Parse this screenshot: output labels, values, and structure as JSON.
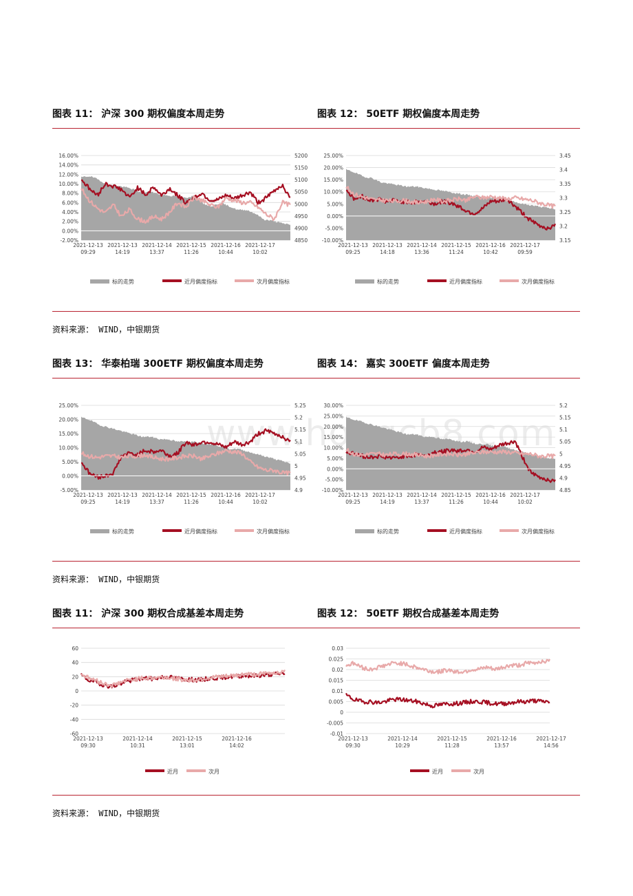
{
  "colors": {
    "gray": "#a6a6a6",
    "dark": "#a50f22",
    "light": "#e8a9a9",
    "rule": "#b8222f",
    "grid": "#d9d9d9"
  },
  "watermark": "www.hongcb8.com",
  "sources": [
    "资料来源： WIND，中银期货",
    "资料来源： WIND，中银期货",
    "资料来源： WIND，中银期货"
  ],
  "legend": {
    "underlying": "标的走势",
    "near": "近月偏度指标",
    "next": "次月偏度指标",
    "near_short": "近月",
    "next_short": "次月"
  },
  "charts": [
    {
      "title": "图表 11： 沪深 300 期权偏度本周走势",
      "chart_data": {
        "type": "area+line",
        "y_left_ticks": [
          "16.00%",
          "14.00%",
          "12.00%",
          "10.00%",
          "8.00%",
          "6.00%",
          "4.00%",
          "2.00%",
          "0.00%",
          "-2.00%"
        ],
        "y_right_ticks": [
          "5200",
          "5150",
          "5100",
          "5050",
          "5000",
          "4950",
          "4900",
          "4850"
        ],
        "ylim_left": [
          -2,
          16
        ],
        "ylim_right": [
          4850,
          5200
        ],
        "x_ticks": [
          [
            "2021-12-13",
            "09:29"
          ],
          [
            "2021-12-13",
            "14:19"
          ],
          [
            "2021-12-14",
            "13:37"
          ],
          [
            "2021-12-15",
            "11:26"
          ],
          [
            "2021-12-16",
            "10:44"
          ],
          [
            "2021-12-17",
            "10:02"
          ]
        ],
        "series": [
          {
            "name": "标的走势",
            "axis": "right",
            "values": [
              5110,
              5115,
              5100,
              5080,
              5075,
              5070,
              5060,
              5045,
              5050,
              5040,
              5035,
              5030,
              5025,
              5035,
              5000,
              4990,
              5005,
              4990,
              4975,
              4975,
              4960,
              4935,
              4930,
              4920,
              4915
            ]
          },
          {
            "name": "近月偏度指标",
            "axis": "left",
            "values": [
              11,
              9,
              7.5,
              10,
              9.5,
              8.8,
              7,
              9.2,
              7.6,
              9.3,
              7.5,
              9,
              7.5,
              6,
              7,
              8,
              6.5,
              6.5,
              7.5,
              6.8,
              7.5,
              8.2,
              6,
              7,
              8.5,
              9.8,
              6.8
            ]
          },
          {
            "name": "次月偏度指标",
            "axis": "left",
            "values": [
              9,
              6.5,
              4.8,
              3.8,
              5.5,
              3,
              4.5,
              2.5,
              2,
              3,
              2.5,
              4,
              6,
              5,
              7,
              6.5,
              5.5,
              5,
              7,
              6.5,
              6,
              6,
              5,
              3.5,
              2.5,
              6,
              5.5
            ]
          }
        ]
      }
    },
    {
      "title": "图表 12： 50ETF 期权偏度本周走势",
      "chart_data": {
        "type": "area+line",
        "y_left_ticks": [
          "25.00%",
          "20.00%",
          "15.00%",
          "10.00%",
          "5.00%",
          "0.00%",
          "-5.00%",
          "-10.00%"
        ],
        "y_right_ticks": [
          "3.45",
          "3.4",
          "3.35",
          "3.3",
          "3.25",
          "3.2",
          "3.15"
        ],
        "ylim_left": [
          -10,
          25
        ],
        "ylim_right": [
          3.15,
          3.45
        ],
        "x_ticks": [
          [
            "2021-12-13",
            "09:25"
          ],
          [
            "2021-12-13",
            "14:18"
          ],
          [
            "2021-12-14",
            "13:36"
          ],
          [
            "2021-12-15",
            "11:24"
          ],
          [
            "2021-12-16",
            "10:42"
          ],
          [
            "2021-12-17",
            "09:59"
          ]
        ],
        "series": [
          {
            "name": "标的走势",
            "axis": "right",
            "values": [
              3.4,
              3.39,
              3.375,
              3.37,
              3.355,
              3.35,
              3.345,
              3.34,
              3.34,
              3.335,
              3.33,
              3.325,
              3.32,
              3.315,
              3.31,
              3.305,
              3.3,
              3.3,
              3.3,
              3.29,
              3.28,
              3.275,
              3.27,
              3.265,
              3.26
            ]
          },
          {
            "name": "近月偏度指标",
            "axis": "left",
            "values": [
              11,
              7,
              8,
              6.5,
              7,
              6,
              6.5,
              6,
              5.5,
              6,
              6,
              5,
              6,
              5.5,
              4,
              2,
              1,
              3,
              6,
              6,
              7,
              4,
              1,
              -2,
              -4,
              -5,
              -4
            ]
          },
          {
            "name": "次月偏度指标",
            "axis": "left",
            "values": [
              12,
              9,
              8,
              7,
              6.5,
              6.5,
              6,
              6.5,
              6,
              5.5,
              6,
              7,
              6,
              6.5,
              7,
              6.5,
              8,
              7.5,
              8,
              7.5,
              7,
              7.5,
              7,
              6.5,
              5.5,
              4.5,
              4
            ]
          }
        ]
      }
    },
    {
      "title": "图表 13： 华泰柏瑞 300ETF 期权偏度本周走势",
      "chart_data": {
        "type": "area+line",
        "y_left_ticks": [
          "25.00%",
          "20.00%",
          "15.00%",
          "10.00%",
          "5.00%",
          "0.00%",
          "-5.00%"
        ],
        "y_right_ticks": [
          "5.25",
          "5.2",
          "5.15",
          "5.1",
          "5.05",
          "5",
          "4.95",
          "4.9"
        ],
        "ylim_left": [
          -5,
          25
        ],
        "ylim_right": [
          4.9,
          5.25
        ],
        "x_ticks": [
          [
            "2021-12-13",
            "09:25"
          ],
          [
            "2021-12-13",
            "14:19"
          ],
          [
            "2021-12-14",
            "13:37"
          ],
          [
            "2021-12-15",
            "11:26"
          ],
          [
            "2021-12-16",
            "10:44"
          ],
          [
            "2021-12-17",
            "10:02"
          ]
        ],
        "series": [
          {
            "name": "标的走势",
            "axis": "right",
            "values": [
              5.2,
              5.19,
              5.17,
              5.16,
              5.15,
              5.14,
              5.13,
              5.12,
              5.12,
              5.11,
              5.11,
              5.1,
              5.1,
              5.1,
              5.09,
              5.09,
              5.08,
              5.07,
              5.07,
              5.06,
              5.05,
              5.04,
              5.03,
              5.02,
              5.01
            ]
          },
          {
            "name": "近月偏度指标",
            "axis": "left",
            "values": [
              5,
              1,
              -0.5,
              0,
              1,
              7,
              8,
              7.5,
              9,
              8.5,
              9,
              7,
              8,
              12,
              11,
              12,
              12,
              11,
              10,
              12,
              11,
              12,
              15,
              16,
              15,
              14,
              12
            ]
          },
          {
            "name": "次月偏度指标",
            "axis": "left",
            "values": [
              8,
              7,
              6.5,
              7,
              7,
              6.5,
              7,
              7,
              7.5,
              6.5,
              6,
              6,
              6.5,
              7,
              7,
              6,
              7,
              8,
              9,
              8.5,
              8,
              5,
              3,
              2,
              2,
              1,
              1
            ]
          }
        ]
      }
    },
    {
      "title": "图表 14： 嘉实 300ETF 偏度本周走势",
      "chart_data": {
        "type": "area+line",
        "y_left_ticks": [
          "30.00%",
          "25.00%",
          "20.00%",
          "15.00%",
          "10.00%",
          "5.00%",
          "0.00%",
          "-5.00%",
          "-10.00%"
        ],
        "y_right_ticks": [
          "5.2",
          "5.15",
          "5.1",
          "5.05",
          "5",
          "4.95",
          "4.9",
          "4.85"
        ],
        "ylim_left": [
          -10,
          30
        ],
        "ylim_right": [
          4.85,
          5.2
        ],
        "x_ticks": [
          [
            "2021-12-13",
            "09:25"
          ],
          [
            "2021-12-13",
            "14:19"
          ],
          [
            "2021-12-14",
            "13:37"
          ],
          [
            "2021-12-15",
            "11:26"
          ],
          [
            "2021-12-16",
            "10:44"
          ],
          [
            "2021-12-17",
            "10:02"
          ]
        ],
        "series": [
          {
            "name": "标的走势",
            "axis": "right",
            "values": [
              5.15,
              5.14,
              5.13,
              5.12,
              5.11,
              5.1,
              5.09,
              5.08,
              5.08,
              5.07,
              5.07,
              5.06,
              5.06,
              5.05,
              5.05,
              5.04,
              5.04,
              5.03,
              5.03,
              5.02,
              5.01,
              5.0,
              4.99,
              4.98,
              4.98
            ]
          },
          {
            "name": "近月偏度指标",
            "axis": "left",
            "values": [
              8,
              7,
              6,
              5.5,
              6,
              5.5,
              5,
              6,
              6,
              7,
              6,
              8,
              8,
              9,
              8.5,
              9,
              8,
              10,
              9,
              11,
              12,
              13,
              5,
              -2,
              -4,
              -5,
              -6
            ]
          },
          {
            "name": "次月偏度指标",
            "axis": "left",
            "values": [
              9,
              7,
              6.5,
              7,
              7,
              6.5,
              7,
              7,
              7,
              6.5,
              6,
              6.5,
              7,
              7,
              6.5,
              7,
              7.5,
              8,
              8,
              8,
              8,
              7.5,
              7,
              7,
              6,
              6,
              6
            ]
          }
        ]
      }
    },
    {
      "title": "图表 11： 沪深 300 期权合成基差本周走势",
      "chart_data": {
        "type": "line",
        "y_left_ticks": [
          "60",
          "40",
          "20",
          "0",
          "-20",
          "-40",
          "-60"
        ],
        "ylim_left": [
          -60,
          60
        ],
        "x_ticks": [
          [
            "2021-12-13",
            "09:30"
          ],
          [
            "2021-12-14",
            "10:31"
          ],
          [
            "2021-12-15",
            "13:01"
          ],
          [
            "2021-12-16",
            "14:02"
          ]
        ],
        "series": [
          {
            "name": "近月",
            "axis": "left",
            "values": [
              22,
              15,
              12,
              8,
              6,
              10,
              14,
              16,
              18,
              17,
              19,
              20,
              18,
              17,
              16,
              15,
              17,
              18,
              19,
              20,
              21,
              22,
              21,
              22,
              23,
              24,
              25
            ]
          },
          {
            "name": "次月",
            "axis": "left",
            "values": [
              24,
              18,
              14,
              10,
              8,
              12,
              15,
              17,
              18,
              18,
              19,
              19,
              17,
              16,
              15,
              16,
              18,
              19,
              20,
              21,
              22,
              24,
              23,
              24,
              25,
              26,
              27
            ]
          }
        ]
      }
    },
    {
      "title": "图表 12： 50ETF 期权合成基差本周走势",
      "chart_data": {
        "type": "line",
        "y_left_ticks": [
          "0.03",
          "0.025",
          "0.02",
          "0.015",
          "0.01",
          "0.005",
          "0",
          "-0.005",
          "-0.01"
        ],
        "ylim_left": [
          -0.01,
          0.03
        ],
        "x_ticks": [
          [
            "2021-12-13",
            "09:30"
          ],
          [
            "2021-12-14",
            "10:29"
          ],
          [
            "2021-12-15",
            "11:28"
          ],
          [
            "2021-12-16",
            "13:57"
          ],
          [
            "2021-12-17",
            "14:56"
          ]
        ],
        "series": [
          {
            "name": "近月",
            "axis": "left",
            "values": [
              0.008,
              0.006,
              0.005,
              0.005,
              0.0045,
              0.005,
              0.006,
              0.006,
              0.0055,
              0.005,
              0.004,
              0.003,
              0.0035,
              0.004,
              0.004,
              0.0045,
              0.005,
              0.005,
              0.0045,
              0.004,
              0.004,
              0.0045,
              0.005,
              0.005,
              0.0055,
              0.005,
              0.005
            ]
          },
          {
            "name": "次月",
            "axis": "left",
            "values": [
              0.022,
              0.023,
              0.021,
              0.02,
              0.021,
              0.022,
              0.023,
              0.023,
              0.022,
              0.021,
              0.02,
              0.019,
              0.019,
              0.02,
              0.019,
              0.019,
              0.02,
              0.02,
              0.021,
              0.02,
              0.021,
              0.022,
              0.022,
              0.023,
              0.023,
              0.024,
              0.024
            ]
          }
        ]
      }
    }
  ]
}
